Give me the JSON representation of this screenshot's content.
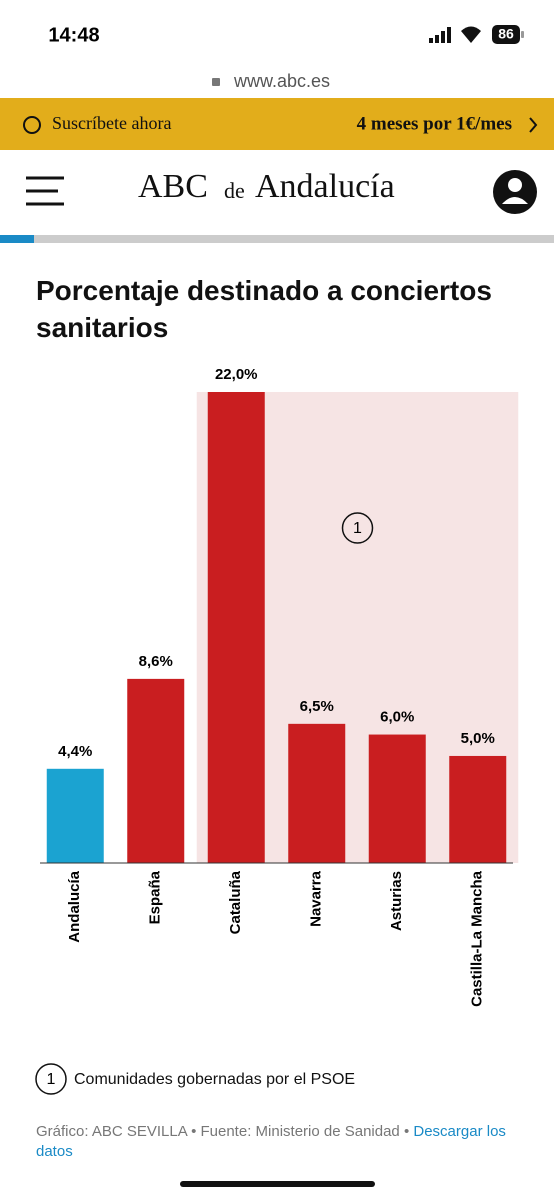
{
  "status_bar": {
    "time": "14:48",
    "battery": "86"
  },
  "browser": {
    "url": "www.abc.es"
  },
  "banner": {
    "left": "Suscríbete ahora",
    "right": "4 meses por 1€/mes"
  },
  "header": {
    "brand": "ABC",
    "connector": "de",
    "region": "Andalucía"
  },
  "chart_data": {
    "type": "bar",
    "title": "Porcentaje destinado a conciertos sanitarios",
    "categories": [
      "Andalucía",
      "España",
      "Cataluña",
      "Navarra",
      "Asturias",
      "Castilla-La Mancha"
    ],
    "values": [
      4.4,
      8.6,
      22.0,
      6.5,
      6.0,
      5.0
    ],
    "value_labels": [
      "4,4%",
      "8,6%",
      "22,0%",
      "6,5%",
      "6,0%",
      "5,0%"
    ],
    "colors": [
      "#1ba3d1",
      "#c91e20",
      "#c91e20",
      "#c91e20",
      "#c91e20",
      "#c91e20"
    ],
    "highlight": {
      "from": "Cataluña",
      "to": "Castilla-La Mancha",
      "label": "1",
      "color": "#f6e4e4"
    },
    "note": {
      "label": "1",
      "text": "Comunidades gobernadas por el PSOE"
    }
  },
  "footer": {
    "source": "Gráfico: ABC SEVILLA • Fuente: Ministerio de Sanidad •",
    "link": "Descargar los datos"
  }
}
